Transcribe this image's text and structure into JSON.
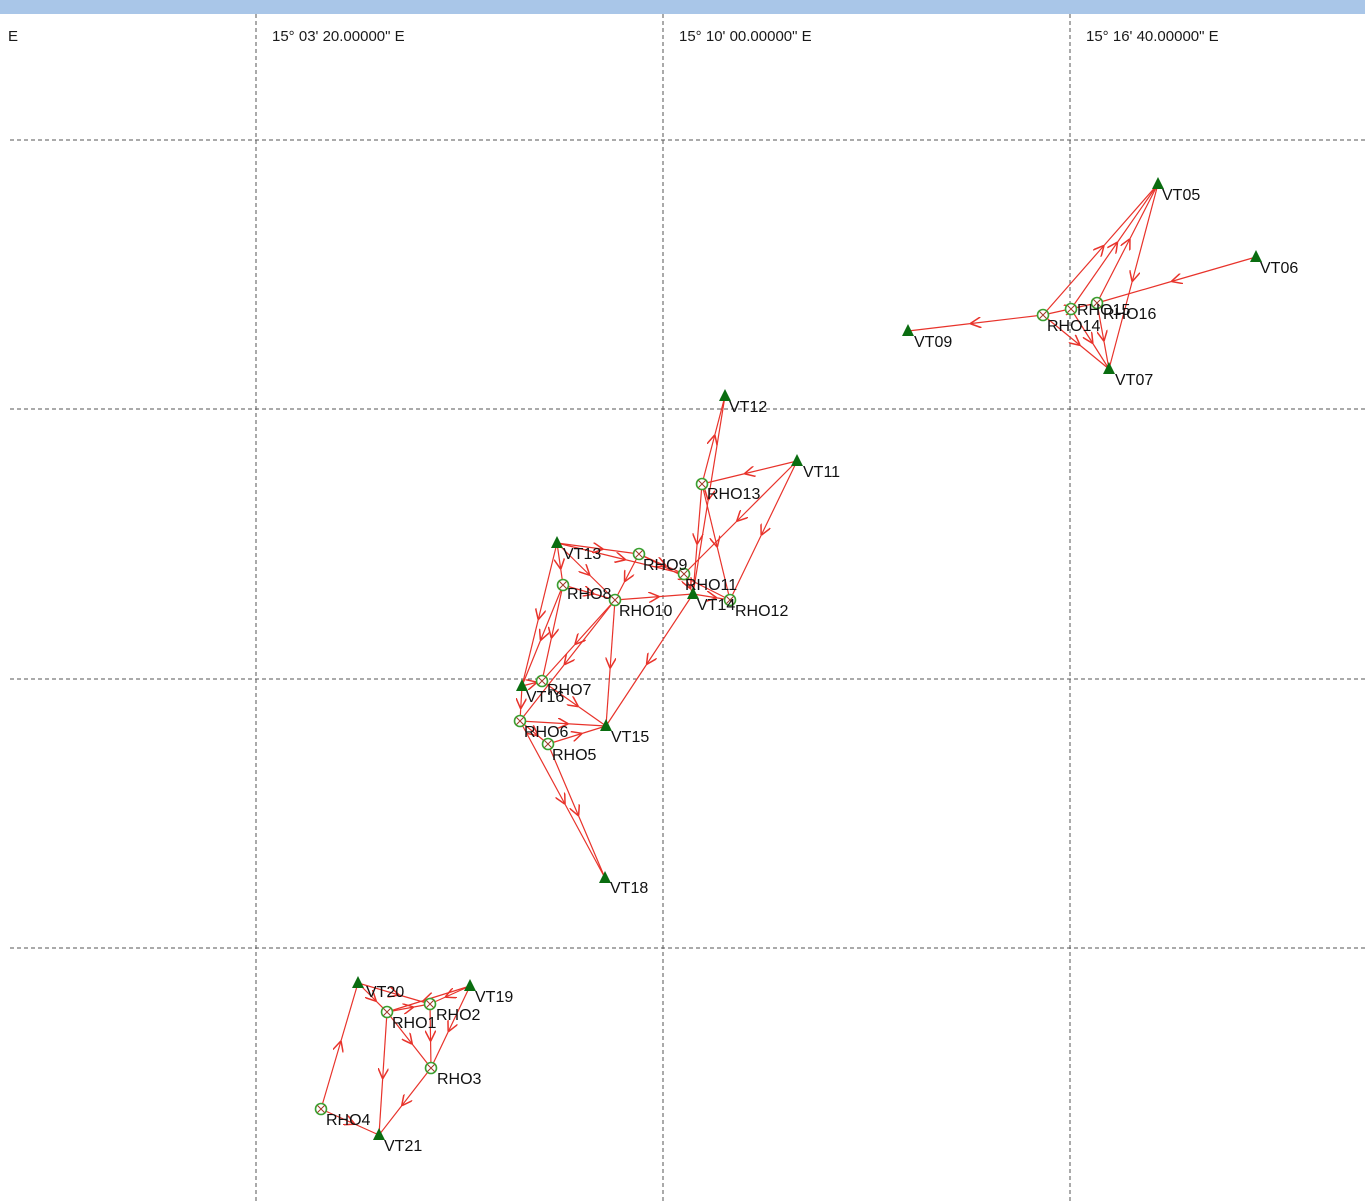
{
  "longitude_labels": [
    "E",
    "15° 03' 20.00000\" E",
    "15° 10' 00.00000\" E",
    "15° 16' 40.00000\" E"
  ],
  "colors": {
    "grid": "#555555",
    "link": "#e8332b",
    "vt_marker": "#0a6d10",
    "rho_marker": "#3aa030",
    "top_bar": "#a9c6e8"
  },
  "stations": [
    {
      "id": "VT05",
      "kind": "vt"
    },
    {
      "id": "VT06",
      "kind": "vt"
    },
    {
      "id": "VT07",
      "kind": "vt"
    },
    {
      "id": "VT09",
      "kind": "vt"
    },
    {
      "id": "RHO14",
      "kind": "rho"
    },
    {
      "id": "RHO15",
      "kind": "rho"
    },
    {
      "id": "RHO16",
      "kind": "rho"
    },
    {
      "id": "VT12",
      "kind": "vt"
    },
    {
      "id": "VT11",
      "kind": "vt"
    },
    {
      "id": "RHO13",
      "kind": "rho"
    },
    {
      "id": "VT13",
      "kind": "vt"
    },
    {
      "id": "RHO9",
      "kind": "rho"
    },
    {
      "id": "RHO11",
      "kind": "rho"
    },
    {
      "id": "RHO8",
      "kind": "rho"
    },
    {
      "id": "RHO10",
      "kind": "rho"
    },
    {
      "id": "VT14",
      "kind": "vt"
    },
    {
      "id": "RHO12",
      "kind": "rho"
    },
    {
      "id": "VT16",
      "kind": "vt"
    },
    {
      "id": "RHO7",
      "kind": "rho"
    },
    {
      "id": "RHO6",
      "kind": "rho"
    },
    {
      "id": "RHO5",
      "kind": "rho"
    },
    {
      "id": "VT15",
      "kind": "vt"
    },
    {
      "id": "VT18",
      "kind": "vt"
    },
    {
      "id": "VT20",
      "kind": "vt"
    },
    {
      "id": "VT19",
      "kind": "vt"
    },
    {
      "id": "RHO1",
      "kind": "rho"
    },
    {
      "id": "RHO2",
      "kind": "rho"
    },
    {
      "id": "RHO3",
      "kind": "rho"
    },
    {
      "id": "RHO4",
      "kind": "rho"
    },
    {
      "id": "VT21",
      "kind": "vt"
    }
  ],
  "links": [
    [
      "RHO14",
      "VT09"
    ],
    [
      "RHO14",
      "VT05"
    ],
    [
      "RHO15",
      "VT05"
    ],
    [
      "RHO16",
      "VT05"
    ],
    [
      "VT06",
      "RHO16"
    ],
    [
      "RHO14",
      "VT07"
    ],
    [
      "RHO15",
      "VT07"
    ],
    [
      "RHO16",
      "VT07"
    ],
    [
      "VT05",
      "VT07"
    ],
    [
      "RHO14",
      "RHO16"
    ],
    [
      "RHO13",
      "VT12"
    ],
    [
      "VT11",
      "RHO13"
    ],
    [
      "VT11",
      "RHO12"
    ],
    [
      "RHO13",
      "RHO12"
    ],
    [
      "VT12",
      "VT14"
    ],
    [
      "RHO13",
      "VT14"
    ],
    [
      "VT11",
      "RHO11"
    ],
    [
      "VT13",
      "RHO9"
    ],
    [
      "VT13",
      "RHO11"
    ],
    [
      "RHO9",
      "RHO11"
    ],
    [
      "RHO9",
      "RHO12"
    ],
    [
      "VT13",
      "RHO8"
    ],
    [
      "RHO8",
      "RHO10"
    ],
    [
      "VT13",
      "RHO10"
    ],
    [
      "RHO9",
      "RHO10"
    ],
    [
      "RHO10",
      "VT14"
    ],
    [
      "RHO11",
      "VT14"
    ],
    [
      "VT14",
      "RHO12"
    ],
    [
      "RHO8",
      "VT16"
    ],
    [
      "RHO8",
      "RHO7"
    ],
    [
      "VT13",
      "VT16"
    ],
    [
      "RHO10",
      "RHO7"
    ],
    [
      "RHO10",
      "RHO6"
    ],
    [
      "RHO10",
      "VT15"
    ],
    [
      "VT14",
      "VT15"
    ],
    [
      "RHO7",
      "VT15"
    ],
    [
      "VT16",
      "RHO6"
    ],
    [
      "RHO6",
      "VT15"
    ],
    [
      "RHO5",
      "VT15"
    ],
    [
      "RHO6",
      "RHO5"
    ],
    [
      "RHO6",
      "VT18"
    ],
    [
      "RHO5",
      "VT18"
    ],
    [
      "VT16",
      "RHO7"
    ],
    [
      "RHO4",
      "VT20"
    ],
    [
      "VT20",
      "RHO1"
    ],
    [
      "VT20",
      "RHO2"
    ],
    [
      "RHO1",
      "RHO2"
    ],
    [
      "VT19",
      "RHO2"
    ],
    [
      "VT19",
      "RHO1"
    ],
    [
      "VT19",
      "RHO3"
    ],
    [
      "RHO1",
      "RHO3"
    ],
    [
      "RHO2",
      "RHO3"
    ],
    [
      "RHO1",
      "VT21"
    ],
    [
      "RHO3",
      "VT21"
    ],
    [
      "RHO4",
      "VT21"
    ]
  ]
}
